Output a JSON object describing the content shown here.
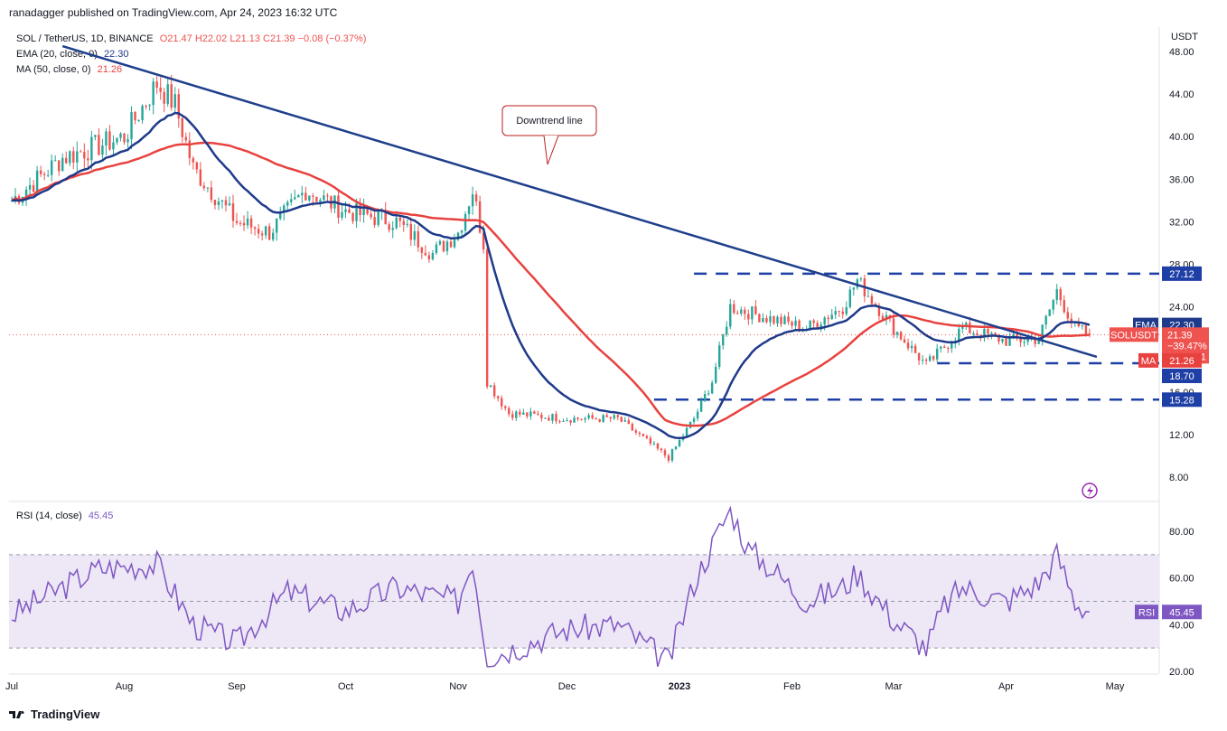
{
  "header": {
    "published_by": "ranadagger published on TradingView.com, Apr 24, 2023 16:32 UTC"
  },
  "legend": {
    "symbol": "SOL / TetherUS, 1D, BINANCE",
    "ohlc": "O21.47  H22.02  L21.13  C21.39  −0.08 (−0.37%)",
    "ema_label": "EMA (20, close, 0)",
    "ema_value": "22.30",
    "ma_label": "MA (50, close, 0)",
    "ma_value": "21.26",
    "rsi_label": "RSI (14, close)",
    "rsi_value": "45.45"
  },
  "colors": {
    "up": "#26a69a",
    "down": "#ef5350",
    "ema": "#1e3a8a",
    "ma": "#e8423f",
    "trendline": "#1f3f8c",
    "rsi": "#7e57c2",
    "rsi_band": "#ede7f6",
    "dashed": "#1e3fa6",
    "annotation_border": "#b71c1c"
  },
  "footer": {
    "brand": "TradingView"
  },
  "chart_data": [
    {
      "type": "candlestick",
      "title": "SOL / TetherUS, 1D, BINANCE",
      "currency": "USDT",
      "ylim": [
        8,
        48
      ],
      "y_ticks": [
        "48.00",
        "44.00",
        "40.00",
        "36.00",
        "32.00",
        "28.00",
        "24.00",
        "20.00",
        "16.00",
        "12.00",
        "8.00"
      ],
      "x_ticks": [
        "Jul",
        "Aug",
        "Sep",
        "Oct",
        "Nov",
        "Dec",
        "2023",
        "Feb",
        "Mar",
        "Apr",
        "May"
      ],
      "anchors": {
        "dates": [
          "2022-07-01",
          "2022-07-15",
          "2022-08-01",
          "2022-08-10",
          "2022-08-15",
          "2022-08-20",
          "2022-09-01",
          "2022-09-10",
          "2022-09-20",
          "2022-10-01",
          "2022-10-15",
          "2022-10-25",
          "2022-11-01",
          "2022-11-05",
          "2022-11-08",
          "2022-11-09",
          "2022-11-15",
          "2022-12-01",
          "2022-12-15",
          "2022-12-29",
          "2023-01-05",
          "2023-01-10",
          "2023-01-15",
          "2023-01-25",
          "2023-02-05",
          "2023-02-15",
          "2023-02-19",
          "2023-03-01",
          "2023-03-10",
          "2023-03-20",
          "2023-04-01",
          "2023-04-10",
          "2023-04-15",
          "2023-04-20",
          "2023-04-24"
        ],
        "close": [
          34,
          38,
          40,
          45,
          43,
          37,
          32,
          31,
          35,
          33,
          32,
          29,
          31,
          35,
          30,
          17,
          14,
          13.5,
          13.5,
          9.8,
          13.5,
          17,
          24,
          23,
          22,
          24,
          26.5,
          22,
          18.5,
          22,
          20.8,
          21,
          25.5,
          22,
          21.39
        ]
      },
      "series": [
        {
          "name": "EMA (20, close, 0)",
          "last": 22.3
        },
        {
          "name": "MA (50, close, 0)",
          "last": 21.26
        }
      ],
      "price_tags": [
        {
          "label": "27.12",
          "value": 27.12
        },
        {
          "label": "EMA",
          "value": 22.3,
          "text": "22.30"
        },
        {
          "label": "SOLUSDT",
          "value": 21.39,
          "text": "21.39",
          "sub1": "−39.47%",
          "sub2": "07:28:01"
        },
        {
          "label": "MA",
          "value": 21.26,
          "text": "21.26"
        },
        {
          "label": "18.70",
          "value": 18.7
        },
        {
          "label": "15.28",
          "value": 15.28
        }
      ],
      "horizontal_levels": [
        27.12,
        18.7,
        15.28
      ],
      "trendline": {
        "from": [
          "2022-07-15",
          48.5
        ],
        "to": [
          "2023-04-26",
          19.3
        ]
      },
      "annotations": [
        {
          "text": "Downtrend line"
        }
      ]
    },
    {
      "type": "line",
      "title": "RSI (14, close)",
      "ylim": [
        20,
        90
      ],
      "y_ticks": [
        "80.00",
        "60.00",
        "40.00",
        "20.00"
      ],
      "band": [
        30,
        70
      ],
      "midline": 50,
      "anchors": {
        "dates": [
          "2022-07-01",
          "2022-07-10",
          "2022-07-25",
          "2022-08-10",
          "2022-08-20",
          "2022-09-01",
          "2022-09-15",
          "2022-10-01",
          "2022-10-15",
          "2022-11-01",
          "2022-11-05",
          "2022-11-09",
          "2022-11-20",
          "2022-12-01",
          "2022-12-15",
          "2022-12-29",
          "2023-01-05",
          "2023-01-15",
          "2023-01-20",
          "2023-01-25",
          "2023-02-05",
          "2023-02-15",
          "2023-02-19",
          "2023-03-01",
          "2023-03-10",
          "2023-03-15",
          "2023-03-20",
          "2023-04-01",
          "2023-04-10",
          "2023-04-15",
          "2023-04-20",
          "2023-04-24"
        ],
        "values": [
          44,
          52,
          64,
          66,
          40,
          32,
          54,
          46,
          56,
          50,
          68,
          26,
          32,
          38,
          40,
          24,
          58,
          90,
          72,
          66,
          50,
          56,
          62,
          42,
          30,
          48,
          56,
          50,
          58,
          70,
          50,
          45.45
        ]
      },
      "tag": {
        "label": "RSI",
        "text": "45.45",
        "value": 45.45
      }
    }
  ]
}
